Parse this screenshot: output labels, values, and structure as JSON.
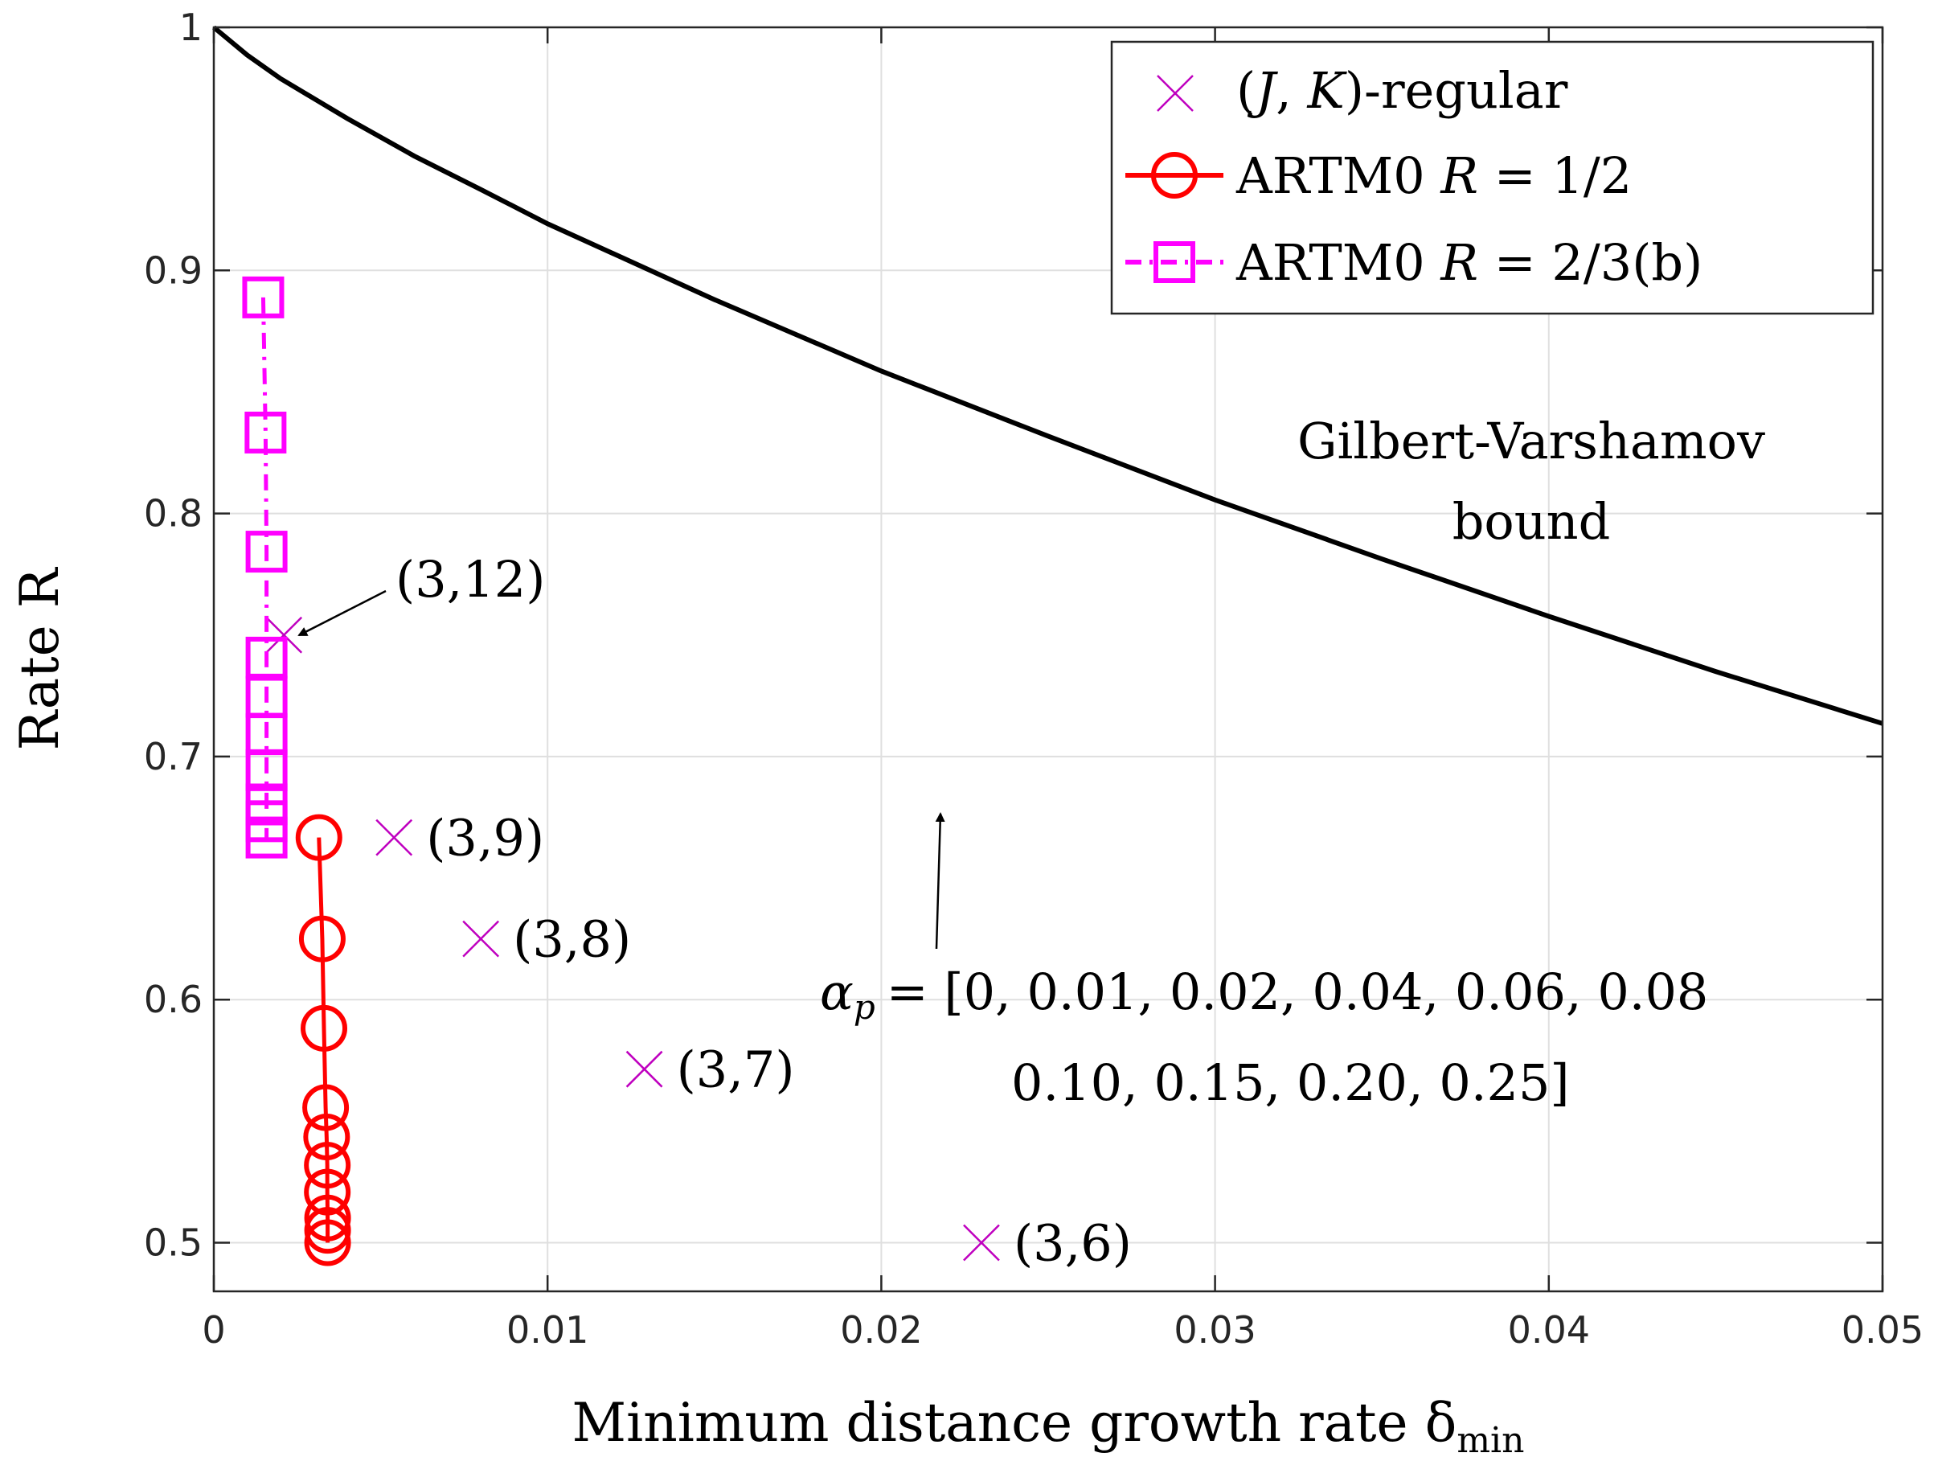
{
  "chart_data": {
    "type": "line",
    "xlabel": "Minimum distance growth rate δ",
    "xlabel_sub": "min",
    "ylabel": "Rate R",
    "xlim": [
      0,
      0.05
    ],
    "ylim": [
      0.48,
      1.0
    ],
    "x_ticks": [
      0,
      0.01,
      0.02,
      0.03,
      0.04,
      0.05
    ],
    "x_tick_labels": [
      "0",
      "0.01",
      "0.02",
      "0.03",
      "0.04",
      "0.05"
    ],
    "y_ticks": [
      0.5,
      0.6,
      0.7,
      0.8,
      0.9,
      1.0
    ],
    "y_tick_labels": [
      "0.5",
      "0.6",
      "0.7",
      "0.8",
      "0.9",
      "1"
    ],
    "grid": true,
    "legend_position": "top-right",
    "series": [
      {
        "name": "(J, K)-regular",
        "style": "markers-x",
        "color": "#bf00bf",
        "points": [
          {
            "x": 0.0021,
            "y": 0.75,
            "label": "(3,12)"
          },
          {
            "x": 0.0054,
            "y": 0.6667,
            "label": "(3,9)"
          },
          {
            "x": 0.008,
            "y": 0.625,
            "label": "(3,8)"
          },
          {
            "x": 0.0129,
            "y": 0.5714,
            "label": "(3,7)"
          },
          {
            "x": 0.023,
            "y": 0.5,
            "label": "(3,6)"
          }
        ]
      },
      {
        "name": "ARTM0 R = 1/2",
        "style": "solid-circle",
        "color": "#ff0000",
        "points": [
          {
            "x": 0.00315,
            "y": 0.6667
          },
          {
            "x": 0.00325,
            "y": 0.625
          },
          {
            "x": 0.0033,
            "y": 0.5882
          },
          {
            "x": 0.00335,
            "y": 0.5556
          },
          {
            "x": 0.00338,
            "y": 0.5435
          },
          {
            "x": 0.0034,
            "y": 0.5319
          },
          {
            "x": 0.0034,
            "y": 0.5208
          },
          {
            "x": 0.00341,
            "y": 0.5102
          },
          {
            "x": 0.00341,
            "y": 0.5051
          },
          {
            "x": 0.00341,
            "y": 0.5
          }
        ]
      },
      {
        "name": "ARTM0 R = 2/3(b)",
        "style": "dashdot-square",
        "color": "#ff00ff",
        "points": [
          {
            "x": 0.00148,
            "y": 0.8889
          },
          {
            "x": 0.00155,
            "y": 0.8333
          },
          {
            "x": 0.00158,
            "y": 0.7843
          },
          {
            "x": 0.00158,
            "y": 0.7407
          },
          {
            "x": 0.00158,
            "y": 0.7246
          },
          {
            "x": 0.00158,
            "y": 0.7092
          },
          {
            "x": 0.00158,
            "y": 0.6944
          },
          {
            "x": 0.00158,
            "y": 0.6803
          },
          {
            "x": 0.00158,
            "y": 0.6734
          },
          {
            "x": 0.00158,
            "y": 0.6667
          }
        ]
      },
      {
        "name": "Gilbert-Varshamov bound",
        "style": "solid",
        "color": "#000000",
        "points": [
          {
            "x": 0.0,
            "y": 1.0
          },
          {
            "x": 0.001,
            "y": 0.9886
          },
          {
            "x": 0.002,
            "y": 0.9789
          },
          {
            "x": 0.004,
            "y": 0.9625
          },
          {
            "x": 0.006,
            "y": 0.9471
          },
          {
            "x": 0.008,
            "y": 0.9333
          },
          {
            "x": 0.01,
            "y": 0.9192
          },
          {
            "x": 0.015,
            "y": 0.888
          },
          {
            "x": 0.02,
            "y": 0.8586
          },
          {
            "x": 0.025,
            "y": 0.8318
          },
          {
            "x": 0.03,
            "y": 0.8056
          },
          {
            "x": 0.035,
            "y": 0.7813
          },
          {
            "x": 0.04,
            "y": 0.7577
          },
          {
            "x": 0.045,
            "y": 0.735
          },
          {
            "x": 0.05,
            "y": 0.7136
          }
        ]
      }
    ],
    "annotations": {
      "gv_line1": "Gilbert-Varshamov",
      "gv_line2": "bound",
      "alpha_symbol": "α",
      "alpha_sub": "p",
      "alpha_line1": "= [0, 0.01, 0.02, 0.04, 0.06, 0.08",
      "alpha_line2": "0.10, 0.15, 0.20, 0.25]"
    },
    "legend": {
      "entry1": {
        "open": "(",
        "J": "J",
        "comma": ", ",
        "K": "K",
        "close": ")-regular"
      },
      "entry2": {
        "prefix": "ARTM0 ",
        "R": "R",
        "rest": " = 1/2"
      },
      "entry3": {
        "prefix": "ARTM0 ",
        "R": "R",
        "rest": " = 2/3(b)"
      }
    }
  }
}
